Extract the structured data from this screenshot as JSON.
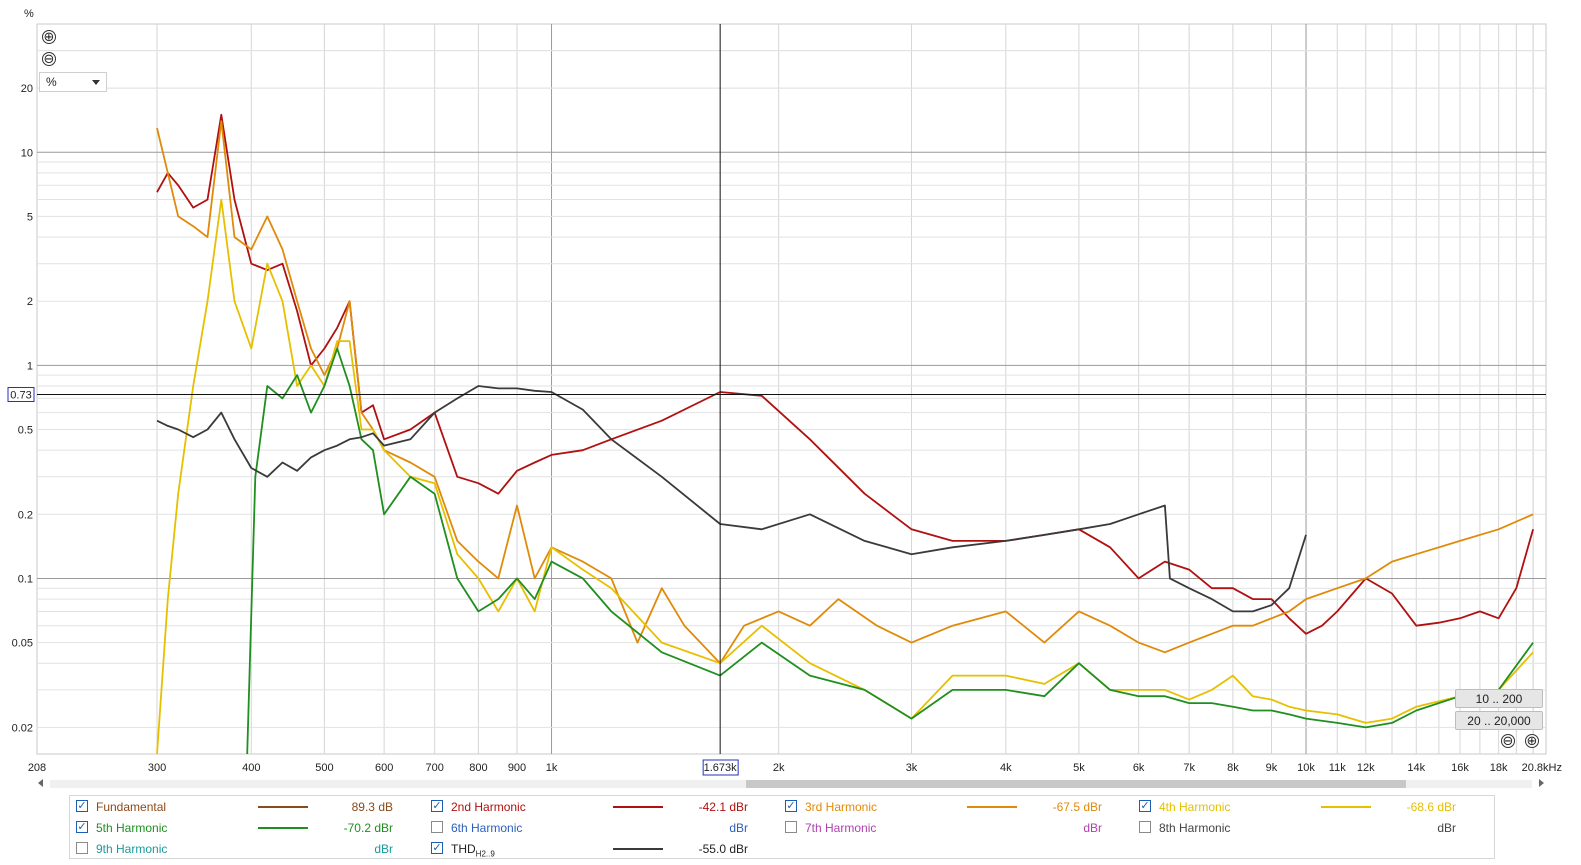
{
  "chart_data": {
    "type": "line",
    "title": "",
    "ylabel": "%",
    "xlabel": "",
    "x_scale": "log",
    "y_scale": "log",
    "xlim": [
      208,
      20800
    ],
    "ylim": [
      0.015,
      40
    ],
    "y_ticks": [
      {
        "v": 20,
        "label": "20"
      },
      {
        "v": 10,
        "label": "10"
      },
      {
        "v": 5,
        "label": "5"
      },
      {
        "v": 2,
        "label": "2"
      },
      {
        "v": 1,
        "label": "1"
      },
      {
        "v": 0.5,
        "label": "0.5"
      },
      {
        "v": 0.2,
        "label": "0.2"
      },
      {
        "v": 0.1,
        "label": "0.1"
      },
      {
        "v": 0.05,
        "label": "0.05"
      },
      {
        "v": 0.02,
        "label": "0.02"
      }
    ],
    "x_ticks": [
      {
        "v": 208,
        "label": "208"
      },
      {
        "v": 300,
        "label": "300"
      },
      {
        "v": 400,
        "label": "400"
      },
      {
        "v": 500,
        "label": "500"
      },
      {
        "v": 600,
        "label": "600"
      },
      {
        "v": 700,
        "label": "700"
      },
      {
        "v": 800,
        "label": "800"
      },
      {
        "v": 900,
        "label": "900"
      },
      {
        "v": 1000,
        "label": "1k"
      },
      {
        "v": 2000,
        "label": "2k"
      },
      {
        "v": 3000,
        "label": "3k"
      },
      {
        "v": 4000,
        "label": "4k"
      },
      {
        "v": 5000,
        "label": "5k"
      },
      {
        "v": 6000,
        "label": "6k"
      },
      {
        "v": 7000,
        "label": "7k"
      },
      {
        "v": 8000,
        "label": "8k"
      },
      {
        "v": 9000,
        "label": "9k"
      },
      {
        "v": 10000,
        "label": "10k"
      },
      {
        "v": 11000,
        "label": "11k"
      },
      {
        "v": 12000,
        "label": "12k"
      },
      {
        "v": 14000,
        "label": "14k"
      },
      {
        "v": 16000,
        "label": "16k"
      },
      {
        "v": 18000,
        "label": "18k"
      },
      {
        "v": 20800,
        "label": "20.8kHz"
      }
    ],
    "cursor": {
      "x": 1673,
      "x_label": "1.673k",
      "y": 0.73,
      "y_label": "0.73"
    },
    "series": [
      {
        "name": "2nd Harmonic",
        "color": "#b01010",
        "x": [
          300,
          310,
          320,
          335,
          350,
          365,
          380,
          400,
          420,
          440,
          460,
          480,
          500,
          520,
          540,
          560,
          580,
          600,
          650,
          700,
          750,
          800,
          850,
          900,
          950,
          1000,
          1100,
          1200,
          1400,
          1673,
          1900,
          2200,
          2600,
          3000,
          3400,
          4000,
          4500,
          5000,
          5500,
          6000,
          6500,
          7000,
          7500,
          8000,
          8500,
          9000,
          9500,
          10000,
          10500,
          11000,
          12000,
          13000,
          14000,
          15000,
          16000,
          17000,
          18000,
          19000,
          20000
        ],
        "values": [
          6.5,
          8,
          7,
          5.5,
          6,
          15,
          6,
          3,
          2.8,
          3,
          1.8,
          1,
          1.2,
          1.5,
          2,
          0.6,
          0.65,
          0.45,
          0.5,
          0.6,
          0.3,
          0.28,
          0.25,
          0.32,
          0.35,
          0.38,
          0.4,
          0.45,
          0.55,
          0.75,
          0.72,
          0.45,
          0.25,
          0.17,
          0.15,
          0.15,
          0.16,
          0.17,
          0.14,
          0.1,
          0.12,
          0.11,
          0.09,
          0.09,
          0.08,
          0.08,
          0.065,
          0.055,
          0.06,
          0.07,
          0.1,
          0.085,
          0.06,
          0.062,
          0.065,
          0.07,
          0.065,
          0.09,
          0.17
        ]
      },
      {
        "name": "3rd Harmonic",
        "color": "#e08a0a",
        "x": [
          300,
          310,
          320,
          335,
          350,
          365,
          380,
          400,
          420,
          440,
          460,
          480,
          500,
          520,
          540,
          560,
          580,
          600,
          650,
          700,
          750,
          800,
          850,
          900,
          950,
          1000,
          1100,
          1200,
          1300,
          1400,
          1500,
          1673,
          1800,
          2000,
          2200,
          2400,
          2700,
          3000,
          3400,
          4000,
          4500,
          5000,
          5500,
          6000,
          6500,
          7000,
          7500,
          8000,
          8500,
          9000,
          9500,
          10000,
          11000,
          12000,
          13000,
          14000,
          16000,
          18000,
          20000
        ],
        "values": [
          13,
          8,
          5,
          4.5,
          4,
          14,
          4,
          3.5,
          5,
          3.5,
          2,
          1.2,
          0.9,
          1.2,
          2,
          0.6,
          0.5,
          0.4,
          0.35,
          0.3,
          0.15,
          0.12,
          0.1,
          0.22,
          0.1,
          0.14,
          0.12,
          0.1,
          0.05,
          0.09,
          0.06,
          0.04,
          0.06,
          0.07,
          0.06,
          0.08,
          0.06,
          0.05,
          0.06,
          0.07,
          0.05,
          0.07,
          0.06,
          0.05,
          0.045,
          0.05,
          0.055,
          0.06,
          0.06,
          0.065,
          0.07,
          0.08,
          0.09,
          0.1,
          0.12,
          0.13,
          0.15,
          0.17,
          0.2
        ]
      },
      {
        "name": "4th Harmonic",
        "color": "#e6c000",
        "x": [
          300,
          310,
          320,
          335,
          350,
          365,
          380,
          400,
          420,
          440,
          460,
          480,
          500,
          520,
          540,
          560,
          580,
          600,
          650,
          700,
          750,
          800,
          850,
          900,
          950,
          1000,
          1100,
          1200,
          1400,
          1673,
          1900,
          2200,
          2600,
          3000,
          3400,
          4000,
          4500,
          5000,
          5500,
          6000,
          6500,
          7000,
          7500,
          8000,
          8500,
          9000,
          9500,
          10000,
          11000,
          12000,
          13000,
          14000,
          16000,
          18000,
          20000
        ],
        "values": [
          0.015,
          0.08,
          0.25,
          0.8,
          2,
          6,
          2,
          1.2,
          3,
          2,
          0.8,
          1,
          0.8,
          1.3,
          1.3,
          0.5,
          0.5,
          0.4,
          0.3,
          0.28,
          0.13,
          0.1,
          0.07,
          0.1,
          0.07,
          0.14,
          0.11,
          0.09,
          0.05,
          0.04,
          0.06,
          0.04,
          0.03,
          0.022,
          0.035,
          0.035,
          0.032,
          0.04,
          0.03,
          0.03,
          0.03,
          0.027,
          0.03,
          0.035,
          0.028,
          0.027,
          0.025,
          0.024,
          0.023,
          0.021,
          0.022,
          0.025,
          0.028,
          0.03,
          0.045
        ]
      },
      {
        "name": "5th Harmonic",
        "color": "#1f8f1f",
        "x": [
          395,
          405,
          420,
          440,
          460,
          480,
          500,
          520,
          540,
          560,
          580,
          600,
          650,
          700,
          750,
          800,
          850,
          900,
          950,
          1000,
          1100,
          1200,
          1400,
          1673,
          1900,
          2200,
          2600,
          3000,
          3400,
          4000,
          4500,
          5000,
          5500,
          6000,
          6500,
          7000,
          7500,
          8000,
          8500,
          9000,
          9500,
          10000,
          11000,
          12000,
          13000,
          14000,
          16000,
          18000,
          20000
        ],
        "values": [
          0.015,
          0.3,
          0.8,
          0.7,
          0.9,
          0.6,
          0.8,
          1.2,
          0.8,
          0.45,
          0.4,
          0.2,
          0.3,
          0.25,
          0.1,
          0.07,
          0.08,
          0.1,
          0.08,
          0.12,
          0.1,
          0.07,
          0.045,
          0.035,
          0.05,
          0.035,
          0.03,
          0.022,
          0.03,
          0.03,
          0.028,
          0.04,
          0.03,
          0.028,
          0.028,
          0.026,
          0.026,
          0.025,
          0.024,
          0.024,
          0.023,
          0.022,
          0.021,
          0.02,
          0.021,
          0.024,
          0.028,
          0.03,
          0.05
        ]
      },
      {
        "name": "THD",
        "color": "#3a3a3a",
        "x": [
          300,
          310,
          320,
          335,
          350,
          365,
          380,
          400,
          420,
          440,
          460,
          480,
          500,
          520,
          540,
          560,
          580,
          600,
          650,
          700,
          750,
          800,
          850,
          900,
          950,
          1000,
          1100,
          1200,
          1400,
          1673,
          1900,
          2200,
          2600,
          3000,
          3400,
          4000,
          4500,
          5000,
          5500,
          6000,
          6500,
          6600,
          7000,
          7500,
          8000,
          8500,
          9000,
          9500,
          10000
        ],
        "values": [
          0.55,
          0.52,
          0.5,
          0.46,
          0.5,
          0.6,
          0.45,
          0.33,
          0.3,
          0.35,
          0.32,
          0.37,
          0.4,
          0.42,
          0.45,
          0.46,
          0.48,
          0.42,
          0.45,
          0.6,
          0.7,
          0.8,
          0.78,
          0.78,
          0.76,
          0.75,
          0.62,
          0.45,
          0.3,
          0.18,
          0.17,
          0.2,
          0.15,
          0.13,
          0.14,
          0.15,
          0.16,
          0.17,
          0.18,
          0.2,
          0.22,
          0.1,
          0.09,
          0.08,
          0.07,
          0.07,
          0.075,
          0.09,
          0.16
        ]
      }
    ],
    "grid": true
  },
  "controls": {
    "zoom_in": "⊕",
    "zoom_out": "⊖",
    "unit_value": "%",
    "range_btn_1": "10 .. 200",
    "range_btn_2": "20 .. 20,000"
  },
  "legend": [
    {
      "label": "Fundamental",
      "checked": true,
      "color": "#8a4a1a",
      "value": "89.3 dB"
    },
    {
      "label": "2nd Harmonic",
      "checked": true,
      "color": "#b01010",
      "value": "-42.1 dBr"
    },
    {
      "label": "3rd Harmonic",
      "checked": true,
      "color": "#e08a0a",
      "value": "-67.5 dBr"
    },
    {
      "label": "4th Harmonic",
      "checked": true,
      "color": "#e6c000",
      "value": "-68.6 dBr"
    },
    {
      "label": "5th Harmonic",
      "checked": true,
      "color": "#1f8f1f",
      "value": "-70.2 dBr"
    },
    {
      "label": "6th Harmonic",
      "checked": false,
      "color": "#2a5fbf",
      "value": "dBr"
    },
    {
      "label": "7th Harmonic",
      "checked": false,
      "color": "#b040b0",
      "value": "dBr"
    },
    {
      "label": "8th Harmonic",
      "checked": false,
      "color": "#444444",
      "value": "dBr"
    },
    {
      "label": "9th Harmonic",
      "checked": false,
      "color": "#1a9a9a",
      "value": "dBr"
    },
    {
      "label": "THD",
      "label_sub": "H2..9",
      "checked": true,
      "color": "#3a3a3a",
      "value": "-55.0 dBr"
    }
  ]
}
